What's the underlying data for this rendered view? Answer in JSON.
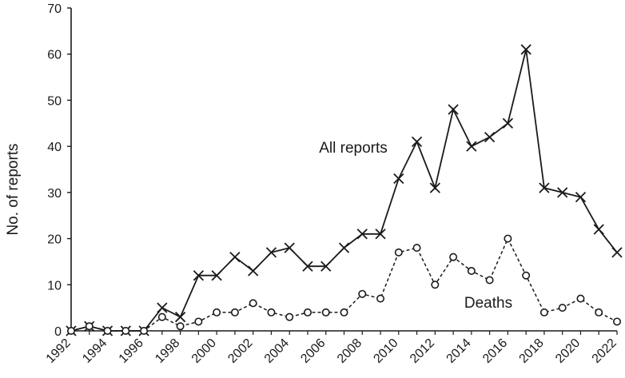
{
  "chart_data": {
    "type": "line",
    "title": "",
    "xlabel": "",
    "ylabel": "No. of reports",
    "ylim": [
      0,
      70
    ],
    "xlim": [
      1992,
      2022
    ],
    "grid": false,
    "y_ticks": [
      "0",
      "10",
      "20",
      "30",
      "40",
      "50",
      "60",
      "70"
    ],
    "x_ticks": [
      "1992",
      "1994",
      "1996",
      "1998",
      "2000",
      "2002",
      "2004",
      "2006",
      "2008",
      "2010",
      "2012",
      "2014",
      "2016",
      "2018",
      "2020",
      "2022"
    ],
    "x": [
      1992,
      1993,
      1994,
      1995,
      1996,
      1997,
      1998,
      1999,
      2000,
      2001,
      2002,
      2003,
      2004,
      2005,
      2006,
      2007,
      2008,
      2009,
      2010,
      2011,
      2012,
      2013,
      2014,
      2015,
      2016,
      2017,
      2018,
      2019,
      2020,
      2021,
      2022
    ],
    "series": [
      {
        "name": "All reports",
        "marker": "x",
        "line_style": "solid",
        "color": "#1a1a1a",
        "values": [
          0,
          1,
          0,
          0,
          0,
          5,
          3,
          12,
          12,
          16,
          13,
          17,
          18,
          14,
          14,
          18,
          21,
          21,
          33,
          41,
          31,
          48,
          40,
          42,
          45,
          61,
          31,
          30,
          29,
          22,
          17
        ]
      },
      {
        "name": "Deaths",
        "marker": "circle",
        "line_style": "dashed",
        "color": "#1a1a1a",
        "values": [
          0,
          1,
          0,
          0,
          0,
          3,
          1,
          2,
          4,
          4,
          6,
          4,
          3,
          4,
          4,
          4,
          8,
          7,
          17,
          18,
          10,
          16,
          13,
          11,
          20,
          12,
          4,
          5,
          7,
          4,
          2
        ]
      }
    ]
  }
}
